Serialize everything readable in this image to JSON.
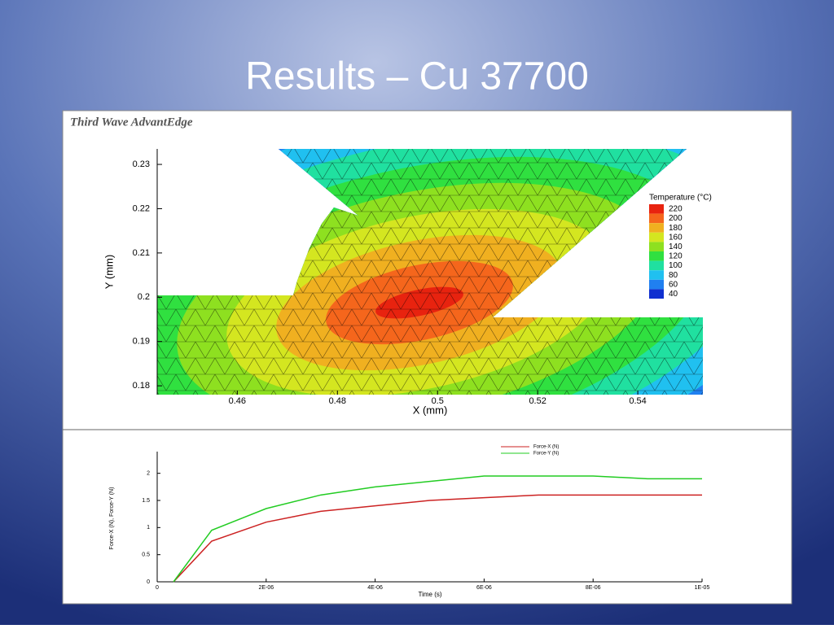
{
  "title": "Results – Cu 37700",
  "chart_data": [
    {
      "type": "contour",
      "label": "Third Wave AdvantEdge",
      "xlabel": "X (mm)",
      "ylabel": "Y (mm)",
      "xlim": [
        0.444,
        0.553
      ],
      "ylim": [
        0.178,
        0.2335
      ],
      "xticks": [
        0.46,
        0.48,
        0.5,
        0.52,
        0.54
      ],
      "yticks": [
        0.18,
        0.19,
        0.2,
        0.21,
        0.22,
        0.23
      ],
      "legend": {
        "title": "Temperature (°C)",
        "levels": [
          220,
          200,
          180,
          160,
          140,
          120,
          100,
          80,
          60,
          40
        ],
        "colors": [
          "#e8230f",
          "#f5661c",
          "#f0b020",
          "#d4e620",
          "#8ee020",
          "#30e040",
          "#20e0a0",
          "#20c0f0",
          "#2080f0",
          "#1030d0"
        ]
      }
    },
    {
      "type": "line",
      "xlabel": "Time (s)",
      "ylabel": "Force-X (N), Force-Y (N)",
      "xlim": [
        0,
        1e-05
      ],
      "ylim": [
        0,
        2.4
      ],
      "xticks": [
        0,
        {
          "value": 2e-06,
          "label": "2E-06"
        },
        {
          "value": 4e-06,
          "label": "4E-06"
        },
        {
          "value": 6e-06,
          "label": "6E-06"
        },
        {
          "value": 8e-06,
          "label": "8E-06"
        },
        {
          "value": 1e-05,
          "label": "1E-05"
        }
      ],
      "yticks": [
        0,
        0.5,
        1,
        1.5,
        2
      ],
      "x": [
        3e-07,
        1e-06,
        2e-06,
        3e-06,
        4e-06,
        5e-06,
        6e-06,
        7e-06,
        8e-06,
        9e-06,
        1e-05
      ],
      "series": [
        {
          "name": "Force-X (N)",
          "color": "#cc2222",
          "values": [
            0,
            0.75,
            1.1,
            1.3,
            1.4,
            1.5,
            1.55,
            1.6,
            1.6,
            1.6,
            1.6
          ]
        },
        {
          "name": "Force-Y (N)",
          "color": "#22cc22",
          "values": [
            0,
            0.95,
            1.35,
            1.6,
            1.75,
            1.85,
            1.95,
            1.95,
            1.95,
            1.9,
            1.9
          ]
        }
      ]
    }
  ]
}
